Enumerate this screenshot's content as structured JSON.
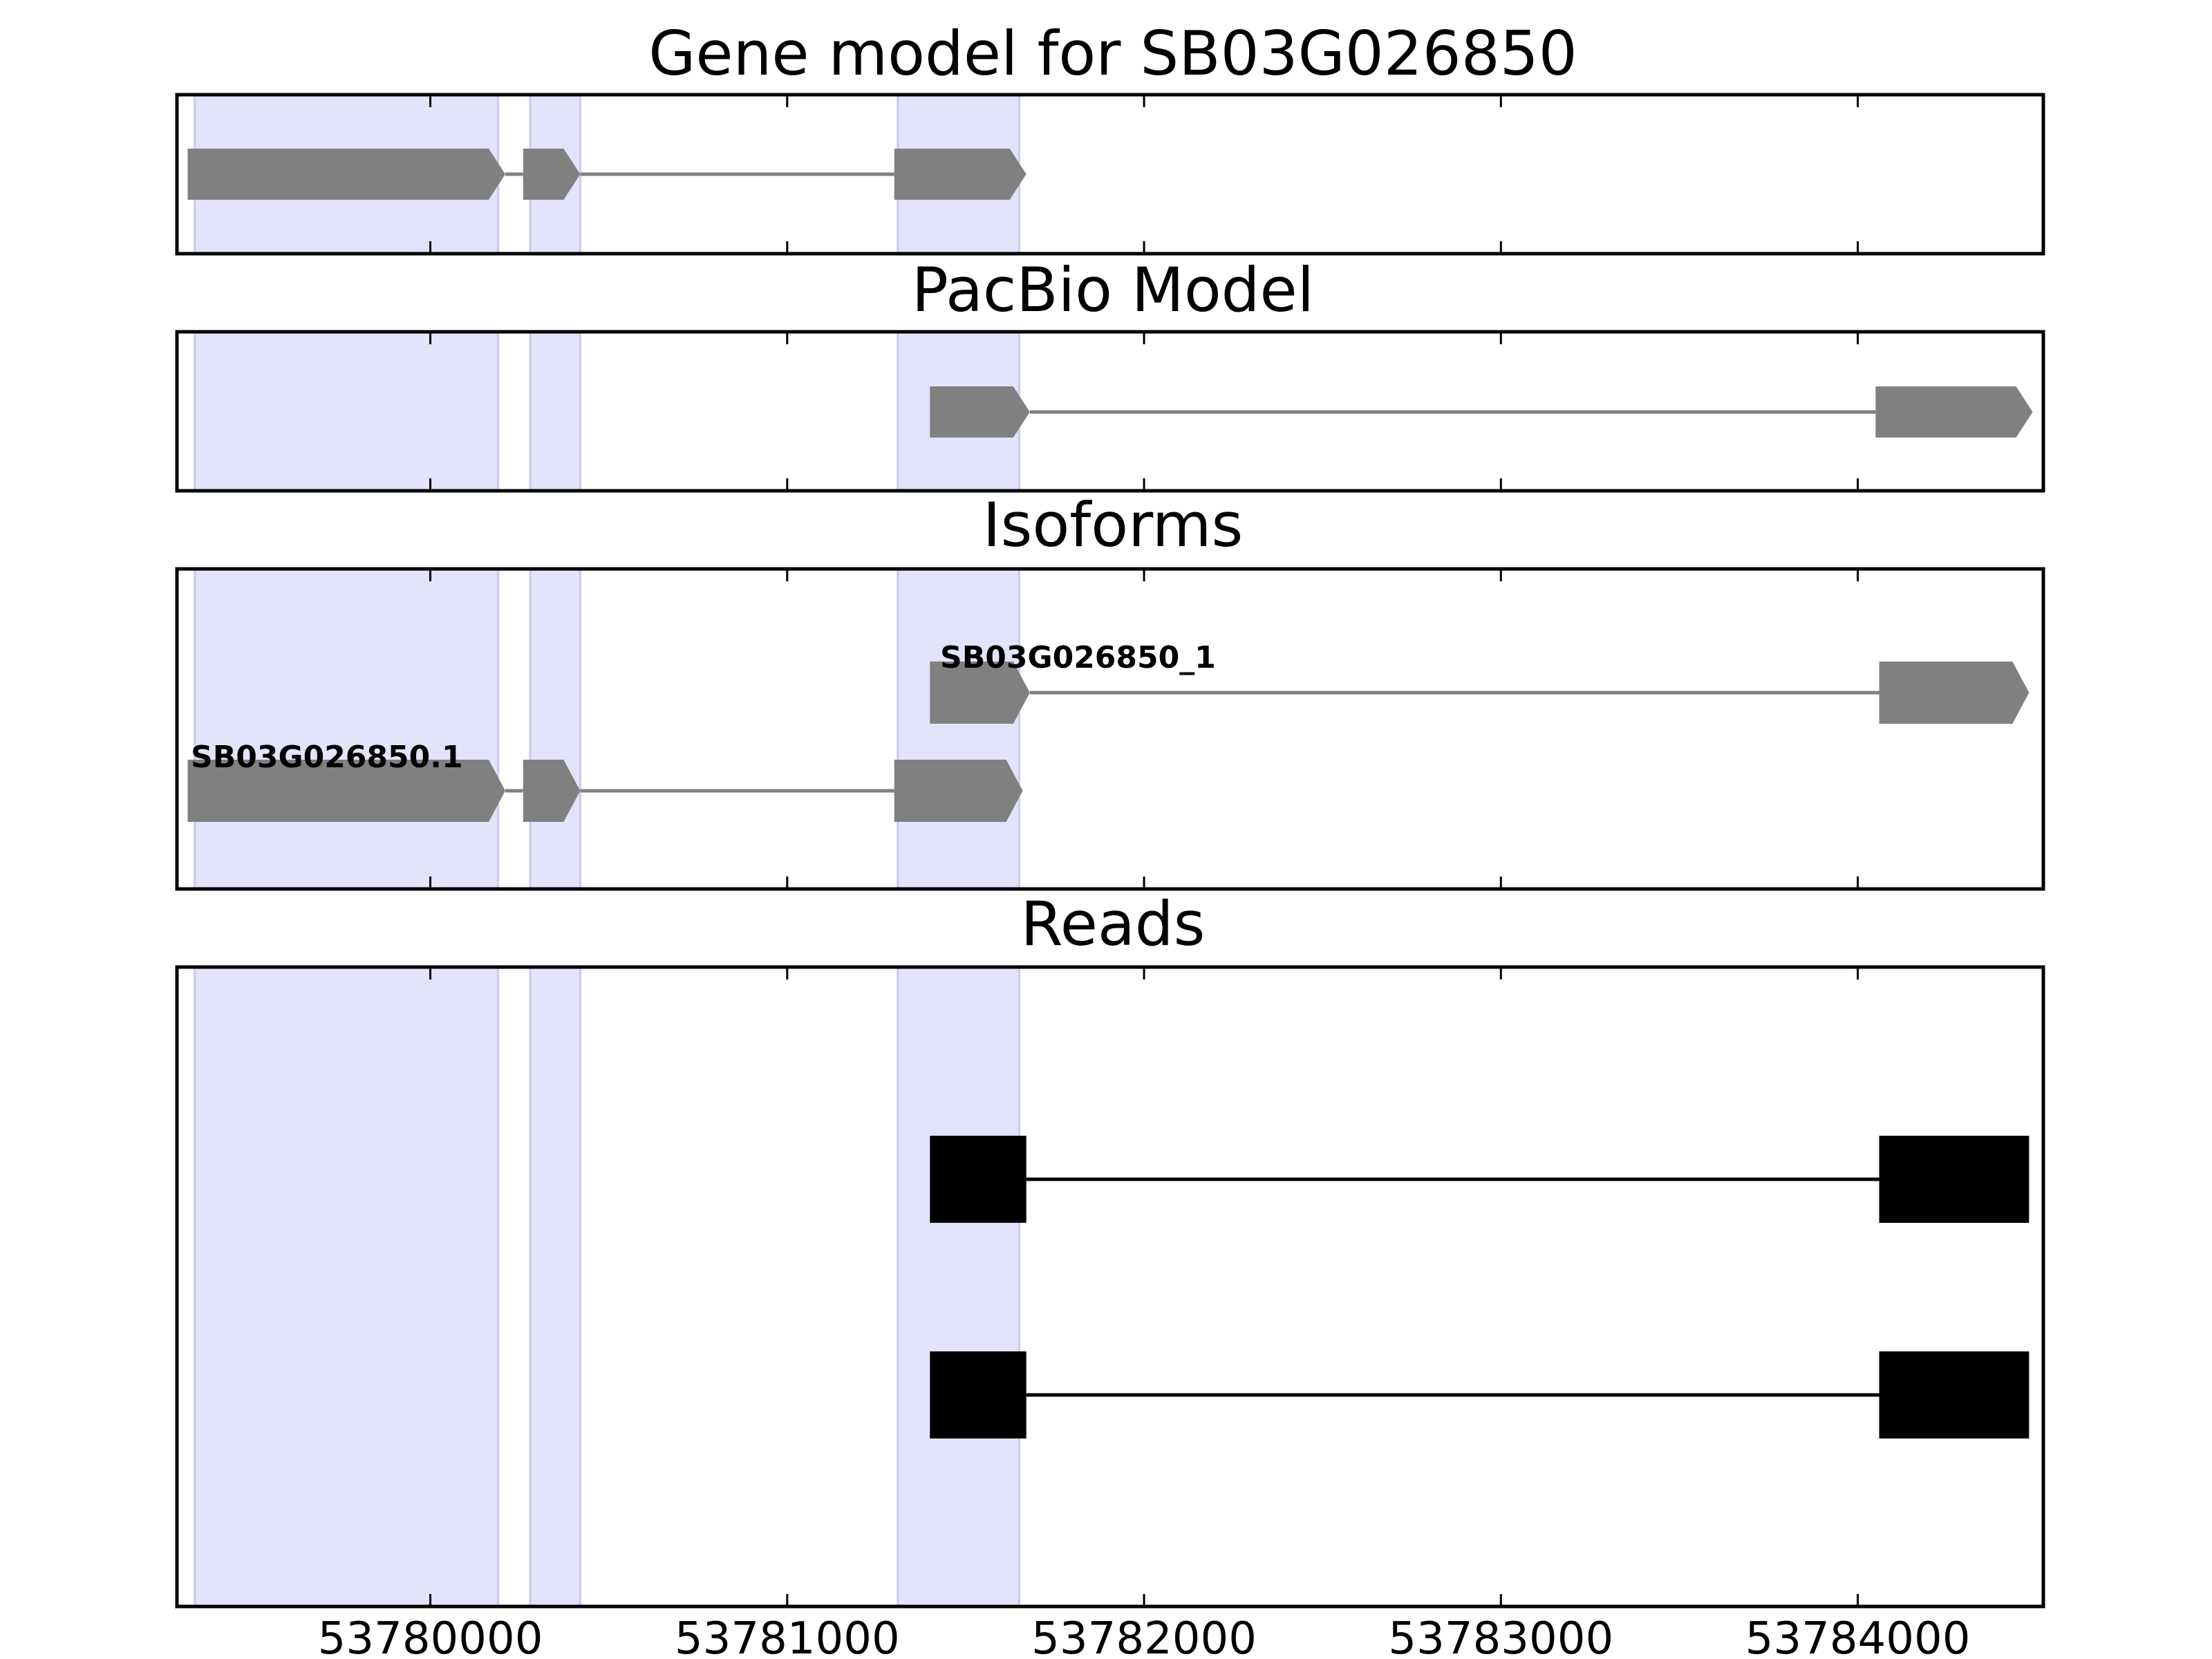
{
  "chart_data": {
    "type": "gene_track",
    "x_axis": {
      "ticks": [
        53780000,
        53781000,
        53782000,
        53783000,
        53784000
      ],
      "tick_labels": [
        "53780000",
        "53781000",
        "53782000",
        "53783000",
        "53784000"
      ],
      "range": [
        53779290,
        53784520
      ]
    },
    "highlight_regions": [
      [
        53779340,
        53780190
      ],
      [
        53780280,
        53780420
      ],
      [
        53781310,
        53781650
      ]
    ],
    "colors": {
      "highlight": "#e3e3fc",
      "highlight_edge": "#c9c9ee",
      "feature": "#808080",
      "read": "#000000",
      "frame": "#000000"
    },
    "panels": [
      {
        "title": "Gene model for SB03G026850",
        "tracks": [
          {
            "kind": "gene",
            "exons": [
              [
                53779320,
                53780210
              ],
              [
                53780260,
                53780420
              ],
              [
                53781300,
                53781670
              ]
            ]
          }
        ]
      },
      {
        "title": "PacBio Model",
        "tracks": [
          {
            "kind": "gene",
            "exons": [
              [
                53781400,
                53781680
              ],
              [
                53784050,
                53784490
              ]
            ]
          }
        ]
      },
      {
        "title": "Isoforms",
        "tracks": [
          {
            "kind": "gene",
            "name": "SB03G026850_1",
            "exons": [
              [
                53781400,
                53781680
              ],
              [
                53784060,
                53784480
              ]
            ]
          },
          {
            "kind": "gene",
            "name": "SB03G026850.1",
            "exons": [
              [
                53779320,
                53780210
              ],
              [
                53780260,
                53780420
              ],
              [
                53781300,
                53781660
              ]
            ]
          }
        ]
      },
      {
        "title": "Reads",
        "tracks": [
          {
            "kind": "read",
            "exons": [
              [
                53781400,
                53781670
              ],
              [
                53784060,
                53784480
              ]
            ]
          },
          {
            "kind": "read",
            "exons": [
              [
                53781400,
                53781670
              ],
              [
                53784060,
                53784480
              ]
            ]
          }
        ]
      }
    ]
  }
}
